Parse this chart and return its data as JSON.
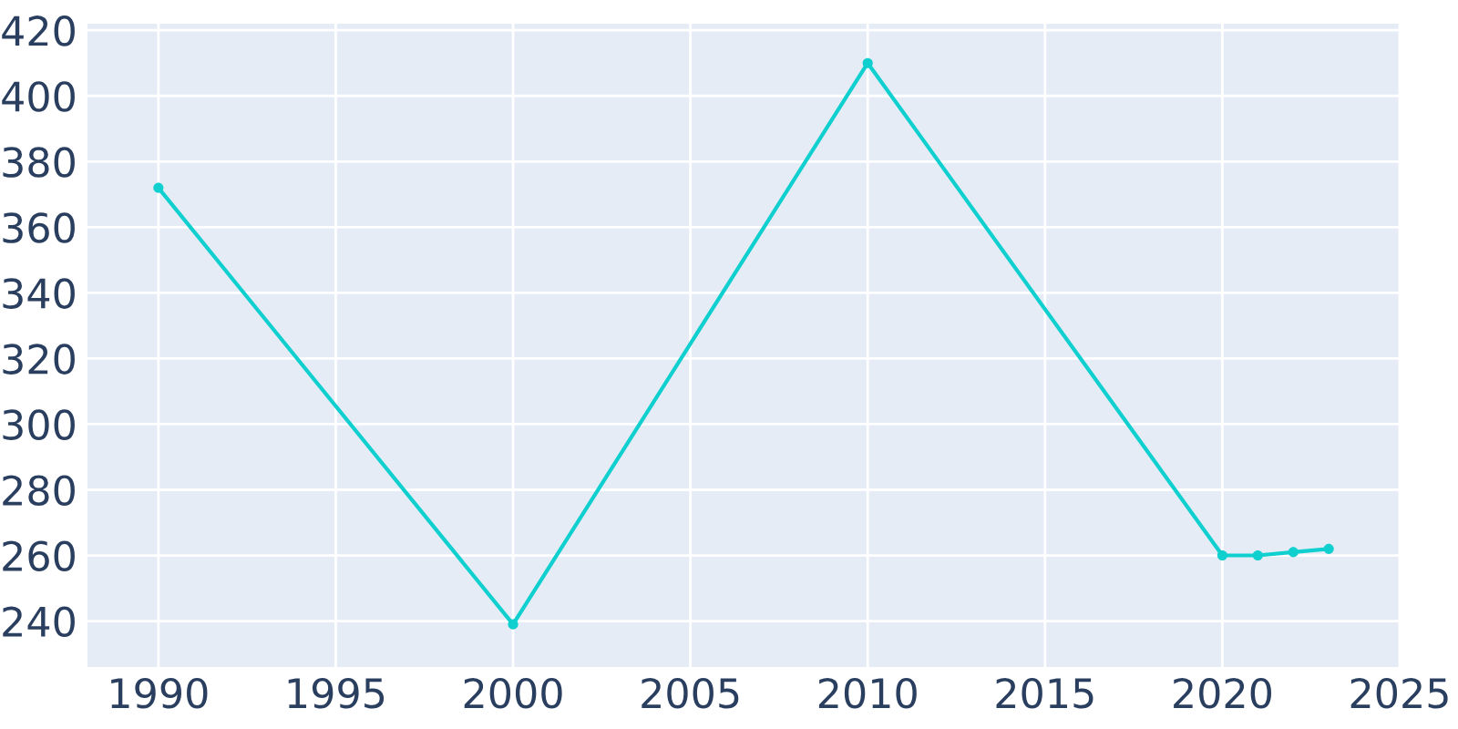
{
  "chart_data": {
    "type": "line",
    "x": [
      1990,
      2000,
      2010,
      2020,
      2021,
      2022,
      2023
    ],
    "series": [
      {
        "color": "#0fcfcf",
        "values": [
          372,
          239,
          410,
          260,
          260,
          261,
          262
        ]
      }
    ],
    "xlim": [
      1988,
      2025
    ],
    "xticks": [
      1990,
      1995,
      2000,
      2005,
      2010,
      2015,
      2020,
      2025
    ],
    "ylim": [
      226,
      422
    ],
    "yticks": [
      240,
      260,
      280,
      300,
      320,
      340,
      360,
      380,
      400,
      420
    ],
    "grid": true,
    "marker": "circle",
    "line_style": "solid"
  }
}
